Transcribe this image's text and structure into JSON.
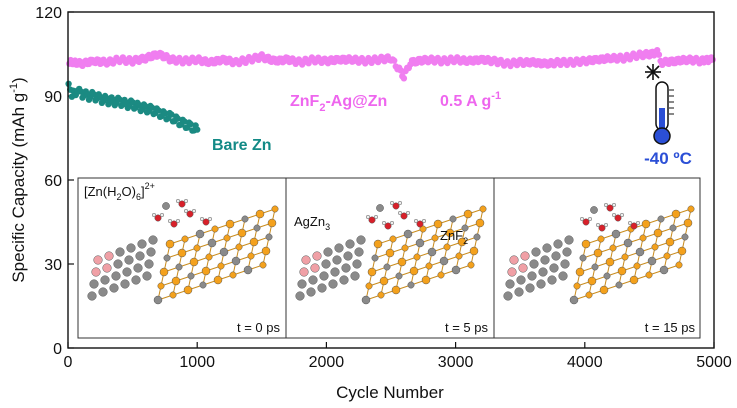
{
  "chart_data": {
    "type": "scatter",
    "xlabel": "Cycle Number",
    "ylabel": "Specific Capacity (mAh g",
    "ylabel_sup": "-1",
    "ylabel_end": ")",
    "xlim": [
      0,
      5000
    ],
    "ylim": [
      0,
      120
    ],
    "xticks": [
      0,
      1000,
      2000,
      3000,
      4000,
      5000
    ],
    "yticks": [
      0,
      30,
      60,
      90,
      120
    ],
    "series": [
      {
        "name": "ZnF2-Ag@Zn",
        "color": "#f07ef0",
        "points": [
          [
            10,
            102
          ],
          [
            100,
            101.5
          ],
          [
            200,
            102.5
          ],
          [
            300,
            102
          ],
          [
            400,
            103
          ],
          [
            500,
            102.5
          ],
          [
            600,
            103.5
          ],
          [
            700,
            105
          ],
          [
            800,
            103
          ],
          [
            900,
            102.5
          ],
          [
            1000,
            103
          ],
          [
            1100,
            102
          ],
          [
            1200,
            103
          ],
          [
            1300,
            102
          ],
          [
            1400,
            103
          ],
          [
            1500,
            104
          ],
          [
            1600,
            102.5
          ],
          [
            1700,
            103
          ],
          [
            1800,
            102
          ],
          [
            1900,
            103
          ],
          [
            2000,
            102.5
          ],
          [
            2100,
            103
          ],
          [
            2200,
            103
          ],
          [
            2300,
            102.5
          ],
          [
            2400,
            103
          ],
          [
            2500,
            103.5
          ],
          [
            2600,
            97
          ],
          [
            2650,
            102
          ],
          [
            2700,
            102.5
          ],
          [
            2800,
            103
          ],
          [
            2900,
            102.5
          ],
          [
            3000,
            103
          ],
          [
            3100,
            102.5
          ],
          [
            3200,
            103
          ],
          [
            3300,
            102.5
          ],
          [
            3400,
            101.5
          ],
          [
            3500,
            102
          ],
          [
            3600,
            102
          ],
          [
            3700,
            101.5
          ],
          [
            3800,
            102
          ],
          [
            3900,
            102
          ],
          [
            4000,
            102.5
          ],
          [
            4100,
            103
          ],
          [
            4200,
            103.5
          ],
          [
            4300,
            103.5
          ],
          [
            4400,
            104.5
          ],
          [
            4500,
            105
          ],
          [
            4560,
            105.5
          ],
          [
            4600,
            102
          ],
          [
            4700,
            102.5
          ],
          [
            4800,
            103
          ],
          [
            4900,
            102.5
          ],
          [
            4990,
            103
          ]
        ]
      },
      {
        "name": "Bare Zn",
        "color": "#1b8a82",
        "points": [
          [
            5,
            93
          ],
          [
            30,
            91
          ],
          [
            60,
            91.5
          ],
          [
            100,
            91
          ],
          [
            150,
            90
          ],
          [
            200,
            90
          ],
          [
            250,
            89
          ],
          [
            300,
            88.5
          ],
          [
            350,
            88
          ],
          [
            400,
            88
          ],
          [
            450,
            87
          ],
          [
            500,
            87
          ],
          [
            550,
            86
          ],
          [
            600,
            85.5
          ],
          [
            650,
            85
          ],
          [
            700,
            84
          ],
          [
            750,
            83
          ],
          [
            800,
            82.5
          ],
          [
            850,
            81
          ],
          [
            900,
            80
          ],
          [
            950,
            79
          ],
          [
            1000,
            78
          ]
        ]
      }
    ],
    "annotations": {
      "series1_label": "ZnF",
      "series1_label_sub": "2",
      "series1_label_rest": "-Ag@Zn",
      "rate_label": "0.5 A g",
      "rate_label_sup": "-1",
      "series2_label": "Bare Zn",
      "temperature": "-40 ºC",
      "inset_species": "[Zn(H",
      "inset_species_sub1": "2",
      "inset_species_mid": "O)",
      "inset_species_sub2": "6",
      "inset_species_end": "]",
      "inset_species_sup": "2+",
      "inset_agzn3": "AgZn",
      "inset_agzn3_sub": "3",
      "inset_znf2": "ZnF",
      "inset_znf2_sub": "2",
      "times": [
        "t = 0 ps",
        "t = 5 ps",
        "t = 15 ps"
      ]
    },
    "colors": {
      "zinc_atom": "#8a8a8a",
      "fluorine_atom": "#f4a11c",
      "silver_atom": "#f0a0a6",
      "oxygen_atom": "#d8202a",
      "thermometer_blue": "#2b4fd6"
    },
    "grid": false,
    "legend": "none"
  }
}
